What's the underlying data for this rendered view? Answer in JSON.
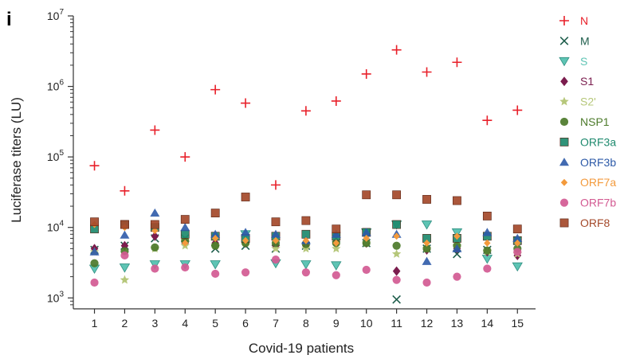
{
  "panel_label": "i",
  "chart_data": {
    "type": "scatter",
    "xlabel": "Covid-19 patients",
    "ylabel": "Luciferase titers (LU)",
    "yscale": "log",
    "ylim": [
      700,
      10000000
    ],
    "xlim": [
      0.3,
      15.6
    ],
    "x": [
      1,
      2,
      3,
      4,
      5,
      6,
      7,
      8,
      9,
      10,
      11,
      12,
      13,
      14,
      15
    ],
    "x_tick_labels": [
      "1",
      "2",
      "3",
      "4",
      "5",
      "6",
      "7",
      "8",
      "9",
      "10",
      "11",
      "12",
      "13",
      "14",
      "15"
    ],
    "y_ticks": [
      1000,
      10000,
      100000,
      1000000,
      10000000
    ],
    "y_tick_labels": [
      {
        "base": "10",
        "exp": "3"
      },
      {
        "base": "10",
        "exp": "4"
      },
      {
        "base": "10",
        "exp": "5"
      },
      {
        "base": "10",
        "exp": "6"
      },
      {
        "base": "10",
        "exp": "7"
      }
    ],
    "grid": false,
    "legend_position": "right",
    "series": [
      {
        "name": "N",
        "marker": "plus",
        "color": "#e8202a",
        "values": [
          75000,
          33000,
          240000,
          100000,
          900000,
          580000,
          40000,
          450000,
          620000,
          1500000,
          3300000,
          1600000,
          2200000,
          330000,
          460000
        ]
      },
      {
        "name": "M",
        "marker": "x",
        "color": "#1f5e4c",
        "values": [
          4800,
          5500,
          7000,
          7000,
          5000,
          5500,
          5000,
          5500,
          7000,
          6000,
          950,
          5000,
          4200,
          4800,
          6500
        ]
      },
      {
        "name": "S",
        "marker": "triangle-down",
        "color": "#5ec4b4",
        "values": [
          2600,
          2700,
          3000,
          3000,
          3000,
          8000,
          3100,
          3000,
          2900,
          8500,
          11000,
          11000,
          8500,
          3600,
          2800
        ]
      },
      {
        "name": "S1",
        "marker": "diamond",
        "color": "#7b1d4e",
        "values": [
          5000,
          5500,
          7500,
          6000,
          6000,
          6000,
          5500,
          5500,
          6000,
          6000,
          2400,
          4800,
          5000,
          4500,
          4000
        ]
      },
      {
        "name": "S2'",
        "marker": "star",
        "color": "#b6c77a",
        "values": [
          4500,
          1800,
          5000,
          5500,
          5500,
          6000,
          5000,
          5000,
          5000,
          6000,
          4200,
          5000,
          5500,
          4500,
          4200
        ]
      },
      {
        "name": "NSP1",
        "marker": "circle",
        "color": "#4c7a2a",
        "values": [
          3100,
          4600,
          5200,
          6500,
          5500,
          6000,
          6000,
          5800,
          6000,
          6000,
          5500,
          5000,
          5500,
          4700,
          5000
        ]
      },
      {
        "name": "ORF3a",
        "marker": "square",
        "color": "#1e8a6e",
        "values": [
          9500,
          11000,
          10000,
          8000,
          7500,
          7000,
          7500,
          8000,
          7500,
          8500,
          11000,
          7000,
          7000,
          7500,
          6500
        ]
      },
      {
        "name": "ORF3b",
        "marker": "triangle-up",
        "color": "#2d5aa8",
        "values": [
          4500,
          7800,
          16000,
          10000,
          8000,
          8500,
          8000,
          6500,
          8000,
          8500,
          8000,
          3300,
          5000,
          8500,
          7000
        ]
      },
      {
        "name": "ORF7a",
        "marker": "small-diamond",
        "color": "#f39a3c",
        "values": [
          11000,
          10000,
          9000,
          6000,
          7000,
          6500,
          6500,
          6500,
          6000,
          7000,
          7500,
          6000,
          7500,
          6000,
          6000
        ]
      },
      {
        "name": "ORF7b",
        "marker": "circle",
        "color": "#d35a92",
        "values": [
          1650,
          4000,
          2600,
          2700,
          2200,
          2300,
          3500,
          2300,
          2100,
          2500,
          1800,
          1650,
          2000,
          2600,
          4500
        ]
      },
      {
        "name": "ORF8",
        "marker": "square",
        "color": "#a4492a",
        "values": [
          12000,
          11000,
          11000,
          13000,
          16000,
          27000,
          12000,
          12500,
          9500,
          29000,
          29000,
          25000,
          24000,
          14500,
          9500
        ]
      }
    ]
  }
}
